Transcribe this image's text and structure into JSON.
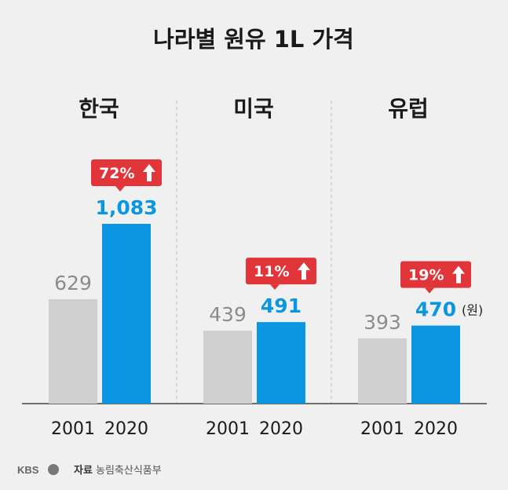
{
  "chart_data": {
    "type": "bar",
    "title": "나라별 원유 1L 가격",
    "unit": "(원)",
    "categories": [
      "2001",
      "2020"
    ],
    "groups": [
      {
        "name": "한국",
        "values": [
          629,
          1083
        ],
        "labels": [
          "629",
          "1,083"
        ],
        "change": "72%"
      },
      {
        "name": "미국",
        "values": [
          439,
          491
        ],
        "labels": [
          "439",
          "491"
        ],
        "change": "11%"
      },
      {
        "name": "유럽",
        "values": [
          393,
          470
        ],
        "labels": [
          "393",
          "470"
        ],
        "change": "19%"
      }
    ],
    "colors": {
      "old": "#cfcfcf",
      "new": "#0a96e0",
      "badge": "#e1353a"
    },
    "grid": false
  },
  "source": {
    "logo": "KBS",
    "label": "자료",
    "text": "농림축산식품부"
  }
}
